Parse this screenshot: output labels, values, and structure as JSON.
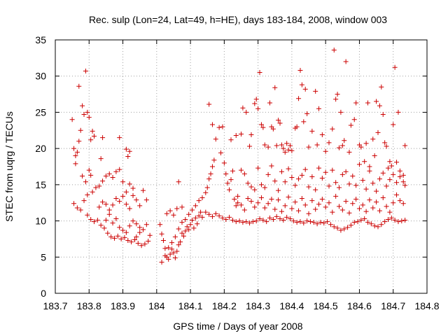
{
  "chart_data": {
    "type": "scatter",
    "title": "Rec. sulp (Lon=24, Lat=49, h=HE), days 183-184, 2008, window 003",
    "xlabel": "GPS time / Days of year 2008",
    "ylabel": "STEC from uqrg / TECUs",
    "xlim": [
      183.7,
      184.8
    ],
    "ylim": [
      0,
      35
    ],
    "xticks": [
      "183.7",
      "183.8",
      "183.9",
      "184",
      "184.1",
      "184.2",
      "184.3",
      "184.4",
      "184.5",
      "184.6",
      "184.7",
      "184.8"
    ],
    "yticks": [
      "0",
      "5",
      "10",
      "15",
      "20",
      "25",
      "30",
      "35"
    ],
    "grid": true,
    "marker": "+",
    "color": "#cc0000",
    "points": [
      [
        183.75,
        24.0
      ],
      [
        183.755,
        20.0
      ],
      [
        183.76,
        19.0
      ],
      [
        183.765,
        19.5
      ],
      [
        183.77,
        28.6
      ],
      [
        183.775,
        22.5
      ],
      [
        183.78,
        25.9
      ],
      [
        183.785,
        24.7
      ],
      [
        183.79,
        30.7
      ],
      [
        183.795,
        25.0
      ],
      [
        183.8,
        24.3
      ],
      [
        183.805,
        21.2
      ],
      [
        183.81,
        22.4
      ],
      [
        183.815,
        21.7
      ],
      [
        183.76,
        17.9
      ],
      [
        183.77,
        21.0
      ],
      [
        183.78,
        16.2
      ],
      [
        183.79,
        15.4
      ],
      [
        183.8,
        17.0
      ],
      [
        183.805,
        16.3
      ],
      [
        183.755,
        12.4
      ],
      [
        183.765,
        11.8
      ],
      [
        183.775,
        11.5
      ],
      [
        183.785,
        12.8
      ],
      [
        183.795,
        13.6
      ],
      [
        183.81,
        14.0
      ],
      [
        183.82,
        14.6
      ],
      [
        183.83,
        14.8
      ],
      [
        183.84,
        15.5
      ],
      [
        183.85,
        16.2
      ],
      [
        183.86,
        16.5
      ],
      [
        183.87,
        16.0
      ],
      [
        183.88,
        16.8
      ],
      [
        183.89,
        17.1
      ],
      [
        183.795,
        10.8
      ],
      [
        183.805,
        10.2
      ],
      [
        183.815,
        9.9
      ],
      [
        183.825,
        10.1
      ],
      [
        183.835,
        9.4
      ],
      [
        183.845,
        9.0
      ],
      [
        183.855,
        8.3
      ],
      [
        183.865,
        7.8
      ],
      [
        183.875,
        7.6
      ],
      [
        183.885,
        7.9
      ],
      [
        183.895,
        7.5
      ],
      [
        183.905,
        7.7
      ],
      [
        183.915,
        7.3
      ],
      [
        183.925,
        7.1
      ],
      [
        183.935,
        7.4
      ],
      [
        183.945,
        6.9
      ],
      [
        183.955,
        6.6
      ],
      [
        183.965,
        6.8
      ],
      [
        183.975,
        7.2
      ],
      [
        183.835,
        18.6
      ],
      [
        183.84,
        21.5
      ],
      [
        183.89,
        21.5
      ],
      [
        183.91,
        19.9
      ],
      [
        183.915,
        18.9
      ],
      [
        183.92,
        19.6
      ],
      [
        183.83,
        11.9
      ],
      [
        183.84,
        12.6
      ],
      [
        183.85,
        12.3
      ],
      [
        183.86,
        11.5
      ],
      [
        183.87,
        12.2
      ],
      [
        183.88,
        13.1
      ],
      [
        183.89,
        12.7
      ],
      [
        183.9,
        13.4
      ],
      [
        183.91,
        12.3
      ],
      [
        183.92,
        11.7
      ],
      [
        183.93,
        13.5
      ],
      [
        183.94,
        12.9
      ],
      [
        183.95,
        12.1
      ],
      [
        183.96,
        14.2
      ],
      [
        183.97,
        12.9
      ],
      [
        183.9,
        15.4
      ],
      [
        183.91,
        14.0
      ],
      [
        183.92,
        15.1
      ],
      [
        183.93,
        14.5
      ],
      [
        183.85,
        10.1
      ],
      [
        183.86,
        10.9
      ],
      [
        183.87,
        9.7
      ],
      [
        183.88,
        10.3
      ],
      [
        183.89,
        9.1
      ],
      [
        183.9,
        8.7
      ],
      [
        183.91,
        8.4
      ],
      [
        183.92,
        9.3
      ],
      [
        183.93,
        10.0
      ],
      [
        183.94,
        9.6
      ],
      [
        183.95,
        9.1
      ],
      [
        183.96,
        8.8
      ],
      [
        183.97,
        9.5
      ],
      [
        183.98,
        8.0
      ],
      [
        183.94,
        7.8
      ],
      [
        183.95,
        8.4
      ],
      [
        184.01,
        9.5
      ],
      [
        184.015,
        8.2
      ],
      [
        184.02,
        7.3
      ],
      [
        184.025,
        6.2
      ],
      [
        184.03,
        5.0
      ],
      [
        184.035,
        4.7
      ],
      [
        184.04,
        5.4
      ],
      [
        184.045,
        6.1
      ],
      [
        184.05,
        5.6
      ],
      [
        184.055,
        4.9
      ],
      [
        184.06,
        5.8
      ],
      [
        184.065,
        6.7
      ],
      [
        184.07,
        7.1
      ],
      [
        184.075,
        8.3
      ],
      [
        184.08,
        7.9
      ],
      [
        184.085,
        8.6
      ],
      [
        184.09,
        9.2
      ],
      [
        184.095,
        8.8
      ],
      [
        184.1,
        9.5
      ],
      [
        184.105,
        10.1
      ],
      [
        184.11,
        9.0
      ],
      [
        184.115,
        10.4
      ],
      [
        184.12,
        9.6
      ],
      [
        184.125,
        10.7
      ],
      [
        184.13,
        11.2
      ],
      [
        184.135,
        10.5
      ],
      [
        184.03,
        11.0
      ],
      [
        184.04,
        11.4
      ],
      [
        184.05,
        10.8
      ],
      [
        184.06,
        11.7
      ],
      [
        184.065,
        15.4
      ],
      [
        184.075,
        11.9
      ],
      [
        184.015,
        4.3
      ],
      [
        184.025,
        5.2
      ],
      [
        184.035,
        6.3
      ],
      [
        184.045,
        7.0
      ],
      [
        184.055,
        7.8
      ],
      [
        184.065,
        8.9
      ],
      [
        184.075,
        9.8
      ],
      [
        184.085,
        10.2
      ],
      [
        184.095,
        10.9
      ],
      [
        184.105,
        11.5
      ],
      [
        184.115,
        12.1
      ],
      [
        184.125,
        12.8
      ],
      [
        184.135,
        13.2
      ],
      [
        184.145,
        13.9
      ],
      [
        184.15,
        14.6
      ],
      [
        184.155,
        15.8
      ],
      [
        184.16,
        16.5
      ],
      [
        184.165,
        17.5
      ],
      [
        184.17,
        18.4
      ],
      [
        184.175,
        21.3
      ],
      [
        184.155,
        26.1
      ],
      [
        184.165,
        23.3
      ],
      [
        184.185,
        22.9
      ],
      [
        184.195,
        23.0
      ],
      [
        184.19,
        19.4
      ],
      [
        184.2,
        18.0
      ],
      [
        184.205,
        16.5
      ],
      [
        184.21,
        15.2
      ],
      [
        184.215,
        14.3
      ],
      [
        184.22,
        15.7
      ],
      [
        184.225,
        16.9
      ],
      [
        184.23,
        13.0
      ],
      [
        184.235,
        12.1
      ],
      [
        184.24,
        12.5
      ],
      [
        184.145,
        11.2
      ],
      [
        184.155,
        10.9
      ],
      [
        184.165,
        10.6
      ],
      [
        184.175,
        11.0
      ],
      [
        184.185,
        10.7
      ],
      [
        184.195,
        10.4
      ],
      [
        184.205,
        10.2
      ],
      [
        184.215,
        10.5
      ],
      [
        184.225,
        10.1
      ],
      [
        184.235,
        9.9
      ],
      [
        184.245,
        10.0
      ],
      [
        184.255,
        9.8
      ],
      [
        184.265,
        9.9
      ],
      [
        184.275,
        9.7
      ],
      [
        184.285,
        9.9
      ],
      [
        184.295,
        10.0
      ],
      [
        184.305,
        10.3
      ],
      [
        184.315,
        10.1
      ],
      [
        184.325,
        9.9
      ],
      [
        184.335,
        10.4
      ],
      [
        184.345,
        10.2
      ],
      [
        184.355,
        10.6
      ],
      [
        184.365,
        10.3
      ],
      [
        184.375,
        10.1
      ],
      [
        184.385,
        10.5
      ],
      [
        184.395,
        10.3
      ],
      [
        184.405,
        10.0
      ],
      [
        184.415,
        9.8
      ],
      [
        184.425,
        9.9
      ],
      [
        184.435,
        9.7
      ],
      [
        184.445,
        10.0
      ],
      [
        184.455,
        9.9
      ],
      [
        184.465,
        9.8
      ],
      [
        184.475,
        9.6
      ],
      [
        184.485,
        9.8
      ],
      [
        184.495,
        9.7
      ],
      [
        184.505,
        9.9
      ],
      [
        184.515,
        9.5
      ],
      [
        184.525,
        9.2
      ],
      [
        184.535,
        9.0
      ],
      [
        184.545,
        8.7
      ],
      [
        184.555,
        8.9
      ],
      [
        184.565,
        9.1
      ],
      [
        184.575,
        9.4
      ],
      [
        184.585,
        9.8
      ],
      [
        184.595,
        9.9
      ],
      [
        184.605,
        10.1
      ],
      [
        184.615,
        10.3
      ],
      [
        184.625,
        9.8
      ],
      [
        184.635,
        9.6
      ],
      [
        184.645,
        9.3
      ],
      [
        184.655,
        9.2
      ],
      [
        184.665,
        9.5
      ],
      [
        184.675,
        9.9
      ],
      [
        184.685,
        10.2
      ],
      [
        184.695,
        10.4
      ],
      [
        184.705,
        10.1
      ],
      [
        184.715,
        9.9
      ],
      [
        184.725,
        10.0
      ],
      [
        184.735,
        10.1
      ],
      [
        184.22,
        21.2
      ],
      [
        184.235,
        21.8
      ],
      [
        184.25,
        22.0
      ],
      [
        184.255,
        25.6
      ],
      [
        184.265,
        25.0
      ],
      [
        184.275,
        20.3
      ],
      [
        184.28,
        21.9
      ],
      [
        184.29,
        26.2
      ],
      [
        184.295,
        26.8
      ],
      [
        184.3,
        25.5
      ],
      [
        184.305,
        30.5
      ],
      [
        184.31,
        23.3
      ],
      [
        184.315,
        22.9
      ],
      [
        184.32,
        20.5
      ],
      [
        184.33,
        20.2
      ],
      [
        184.335,
        26.3
      ],
      [
        184.34,
        23.0
      ],
      [
        184.345,
        22.7
      ],
      [
        184.35,
        28.4
      ],
      [
        184.355,
        20.4
      ],
      [
        184.36,
        23.9
      ],
      [
        184.365,
        23.5
      ],
      [
        184.37,
        20.5
      ],
      [
        184.375,
        20.0
      ],
      [
        184.38,
        19.5
      ],
      [
        184.385,
        20.7
      ],
      [
        184.39,
        19.8
      ],
      [
        184.395,
        20.4
      ],
      [
        184.4,
        19.7
      ],
      [
        184.41,
        22.8
      ],
      [
        184.415,
        23.0
      ],
      [
        184.42,
        26.9
      ],
      [
        184.425,
        30.8
      ],
      [
        184.43,
        28.8
      ],
      [
        184.435,
        23.7
      ],
      [
        184.44,
        28.2
      ],
      [
        184.445,
        24.8
      ],
      [
        184.45,
        20.2
      ],
      [
        184.46,
        22.4
      ],
      [
        184.47,
        27.9
      ],
      [
        184.475,
        20.5
      ],
      [
        184.48,
        25.5
      ],
      [
        184.49,
        21.9
      ],
      [
        184.5,
        19.6
      ],
      [
        184.51,
        20.8
      ],
      [
        184.52,
        22.7
      ],
      [
        184.525,
        33.6
      ],
      [
        184.53,
        26.8
      ],
      [
        184.535,
        27.5
      ],
      [
        184.54,
        20.1
      ],
      [
        184.545,
        25.0
      ],
      [
        184.55,
        20.4
      ],
      [
        184.555,
        21.1
      ],
      [
        184.56,
        32.0
      ],
      [
        184.57,
        19.5
      ],
      [
        184.575,
        23.2
      ],
      [
        184.585,
        24.0
      ],
      [
        184.59,
        26.3
      ],
      [
        184.6,
        20.5
      ],
      [
        184.605,
        20.2
      ],
      [
        184.615,
        18.2
      ],
      [
        184.62,
        20.7
      ],
      [
        184.625,
        26.3
      ],
      [
        184.63,
        17.5
      ],
      [
        184.64,
        21.3
      ],
      [
        184.645,
        19.0
      ],
      [
        184.65,
        26.5
      ],
      [
        184.655,
        22.2
      ],
      [
        184.66,
        25.9
      ],
      [
        184.665,
        28.5
      ],
      [
        184.67,
        24.7
      ],
      [
        184.675,
        20.8
      ],
      [
        184.68,
        20.3
      ],
      [
        184.685,
        17.3
      ],
      [
        184.69,
        18.2
      ],
      [
        184.695,
        17.6
      ],
      [
        184.7,
        23.3
      ],
      [
        184.705,
        31.2
      ],
      [
        184.71,
        18.1
      ],
      [
        184.715,
        25.0
      ],
      [
        184.72,
        16.9
      ],
      [
        184.73,
        16.3
      ],
      [
        184.735,
        20.4
      ],
      [
        184.25,
        17.0
      ],
      [
        184.26,
        16.5
      ],
      [
        184.27,
        15.2
      ],
      [
        184.28,
        14.7
      ],
      [
        184.29,
        14.3
      ],
      [
        184.3,
        17.3
      ],
      [
        184.31,
        15.0
      ],
      [
        184.32,
        14.6
      ],
      [
        184.33,
        16.4
      ],
      [
        184.34,
        17.6
      ],
      [
        184.35,
        15.5
      ],
      [
        184.36,
        14.2
      ],
      [
        184.37,
        16.8
      ],
      [
        184.38,
        15.4
      ],
      [
        184.39,
        17.2
      ],
      [
        184.4,
        16.0
      ],
      [
        184.41,
        14.9
      ],
      [
        184.42,
        15.8
      ],
      [
        184.43,
        16.3
      ],
      [
        184.44,
        17.1
      ],
      [
        184.45,
        14.7
      ],
      [
        184.46,
        16.1
      ],
      [
        184.47,
        14.3
      ],
      [
        184.48,
        17.3
      ],
      [
        184.49,
        15.9
      ],
      [
        184.5,
        16.7
      ],
      [
        184.51,
        14.8
      ],
      [
        184.52,
        17.0
      ],
      [
        184.53,
        15.3
      ],
      [
        184.54,
        14.6
      ],
      [
        184.55,
        16.4
      ],
      [
        184.56,
        16.8
      ],
      [
        184.57,
        15.1
      ],
      [
        184.58,
        16.2
      ],
      [
        184.59,
        14.9
      ],
      [
        184.6,
        17.8
      ],
      [
        184.61,
        15.6
      ],
      [
        184.62,
        14.4
      ],
      [
        184.63,
        16.9
      ],
      [
        184.64,
        15.2
      ],
      [
        184.65,
        14.1
      ],
      [
        184.66,
        15.8
      ],
      [
        184.67,
        16.6
      ],
      [
        184.68,
        14.8
      ],
      [
        184.69,
        15.7
      ],
      [
        184.7,
        16.4
      ],
      [
        184.71,
        15.3
      ],
      [
        184.72,
        16.1
      ],
      [
        184.73,
        15.4
      ],
      [
        184.735,
        14.9
      ],
      [
        184.24,
        13.4
      ],
      [
        184.25,
        12.2
      ],
      [
        184.26,
        11.5
      ],
      [
        184.27,
        13.1
      ],
      [
        184.28,
        12.7
      ],
      [
        184.29,
        11.9
      ],
      [
        184.3,
        12.5
      ],
      [
        184.31,
        13.2
      ],
      [
        184.32,
        11.8
      ],
      [
        184.33,
        12.4
      ],
      [
        184.34,
        13.0
      ],
      [
        184.35,
        11.6
      ],
      [
        184.36,
        12.9
      ],
      [
        184.37,
        11.3
      ],
      [
        184.38,
        12.1
      ],
      [
        184.39,
        13.3
      ],
      [
        184.4,
        11.7
      ],
      [
        184.41,
        12.6
      ],
      [
        184.42,
        11.4
      ],
      [
        184.43,
        13.1
      ],
      [
        184.44,
        12.2
      ],
      [
        184.45,
        11.0
      ],
      [
        184.46,
        12.8
      ],
      [
        184.47,
        11.6
      ],
      [
        184.48,
        12.3
      ],
      [
        184.49,
        13.0
      ],
      [
        184.5,
        11.9
      ],
      [
        184.51,
        12.5
      ],
      [
        184.52,
        11.2
      ],
      [
        184.53,
        13.4
      ],
      [
        184.54,
        12.0
      ],
      [
        184.55,
        11.5
      ],
      [
        184.56,
        12.7
      ],
      [
        184.57,
        11.1
      ],
      [
        184.58,
        12.4
      ],
      [
        184.59,
        13.0
      ],
      [
        184.6,
        11.7
      ],
      [
        184.61,
        12.2
      ],
      [
        184.62,
        11.3
      ],
      [
        184.63,
        12.9
      ],
      [
        184.64,
        11.8
      ],
      [
        184.65,
        12.6
      ],
      [
        184.66,
        11.4
      ],
      [
        184.67,
        13.2
      ],
      [
        184.68,
        12.0
      ],
      [
        184.69,
        11.2
      ],
      [
        184.7,
        12.5
      ],
      [
        184.71,
        13.6
      ],
      [
        184.72,
        12.8
      ],
      [
        184.73,
        12.4
      ]
    ]
  }
}
